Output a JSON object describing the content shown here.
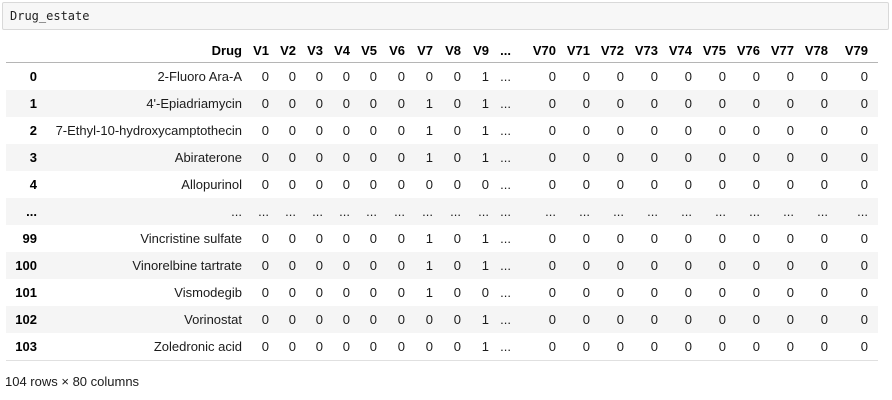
{
  "code_cell": {
    "text": "Drug_estate"
  },
  "table": {
    "index_header": "",
    "columns": [
      "Drug",
      "V1",
      "V2",
      "V3",
      "V4",
      "V5",
      "V6",
      "V7",
      "V8",
      "V9",
      "...",
      "V70",
      "V71",
      "V72",
      "V73",
      "V74",
      "V75",
      "V76",
      "V77",
      "V78",
      "V79"
    ],
    "rows": [
      {
        "index": "0",
        "cells": [
          "2-Fluoro Ara-A",
          "0",
          "0",
          "0",
          "0",
          "0",
          "0",
          "0",
          "0",
          "1",
          "...",
          "0",
          "0",
          "0",
          "0",
          "0",
          "0",
          "0",
          "0",
          "0",
          "0"
        ]
      },
      {
        "index": "1",
        "cells": [
          "4'-Epiadriamycin",
          "0",
          "0",
          "0",
          "0",
          "0",
          "0",
          "1",
          "0",
          "1",
          "...",
          "0",
          "0",
          "0",
          "0",
          "0",
          "0",
          "0",
          "0",
          "0",
          "0"
        ]
      },
      {
        "index": "2",
        "cells": [
          "7-Ethyl-10-hydroxycamptothecin",
          "0",
          "0",
          "0",
          "0",
          "0",
          "0",
          "1",
          "0",
          "1",
          "...",
          "0",
          "0",
          "0",
          "0",
          "0",
          "0",
          "0",
          "0",
          "0",
          "0"
        ]
      },
      {
        "index": "3",
        "cells": [
          "Abiraterone",
          "0",
          "0",
          "0",
          "0",
          "0",
          "0",
          "1",
          "0",
          "1",
          "...",
          "0",
          "0",
          "0",
          "0",
          "0",
          "0",
          "0",
          "0",
          "0",
          "0"
        ]
      },
      {
        "index": "4",
        "cells": [
          "Allopurinol",
          "0",
          "0",
          "0",
          "0",
          "0",
          "0",
          "0",
          "0",
          "0",
          "...",
          "0",
          "0",
          "0",
          "0",
          "0",
          "0",
          "0",
          "0",
          "0",
          "0"
        ]
      },
      {
        "index": "...",
        "cells": [
          "...",
          "...",
          "...",
          "...",
          "...",
          "...",
          "...",
          "...",
          "...",
          "...",
          "...",
          "...",
          "...",
          "...",
          "...",
          "...",
          "...",
          "...",
          "...",
          "...",
          "..."
        ]
      },
      {
        "index": "99",
        "cells": [
          "Vincristine sulfate",
          "0",
          "0",
          "0",
          "0",
          "0",
          "0",
          "1",
          "0",
          "1",
          "...",
          "0",
          "0",
          "0",
          "0",
          "0",
          "0",
          "0",
          "0",
          "0",
          "0"
        ]
      },
      {
        "index": "100",
        "cells": [
          "Vinorelbine tartrate",
          "0",
          "0",
          "0",
          "0",
          "0",
          "0",
          "1",
          "0",
          "1",
          "...",
          "0",
          "0",
          "0",
          "0",
          "0",
          "0",
          "0",
          "0",
          "0",
          "0"
        ]
      },
      {
        "index": "101",
        "cells": [
          "Vismodegib",
          "0",
          "0",
          "0",
          "0",
          "0",
          "0",
          "1",
          "0",
          "0",
          "...",
          "0",
          "0",
          "0",
          "0",
          "0",
          "0",
          "0",
          "0",
          "0",
          "0"
        ]
      },
      {
        "index": "102",
        "cells": [
          "Vorinostat",
          "0",
          "0",
          "0",
          "0",
          "0",
          "0",
          "0",
          "0",
          "1",
          "...",
          "0",
          "0",
          "0",
          "0",
          "0",
          "0",
          "0",
          "0",
          "0",
          "0"
        ]
      },
      {
        "index": "103",
        "cells": [
          "Zoledronic acid",
          "0",
          "0",
          "0",
          "0",
          "0",
          "0",
          "0",
          "0",
          "1",
          "...",
          "0",
          "0",
          "0",
          "0",
          "0",
          "0",
          "0",
          "0",
          "0",
          "0"
        ]
      }
    ],
    "footer": "104 rows × 80 columns"
  },
  "colors": {
    "stripe": "#f5f5f5",
    "header_border": "#b5b5b5",
    "table_bottom_border": "#e0e0e0",
    "code_cell_bg": "#f7f7f7",
    "code_cell_border": "#d9d9d9",
    "text": "#1b1b1b"
  }
}
